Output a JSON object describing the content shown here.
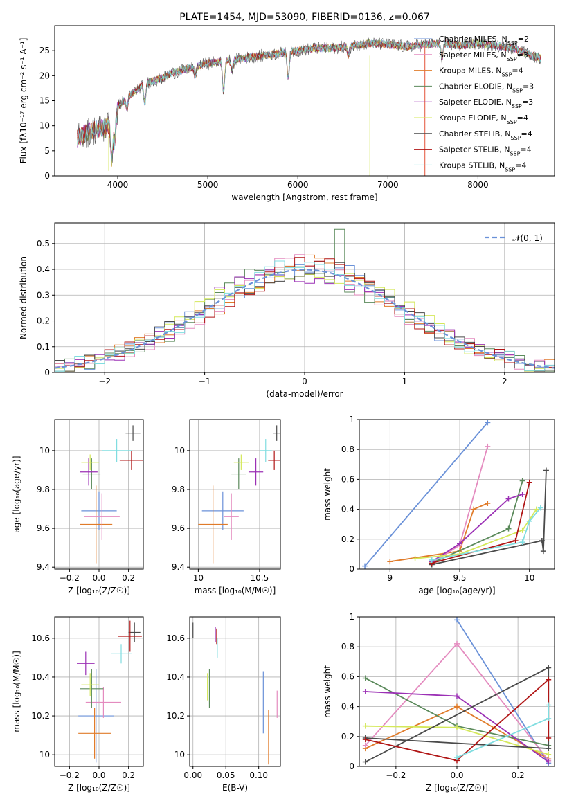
{
  "figure": {
    "title": "PLATE=1454, MJD=53090, FIBERID=0136, z=0.067"
  },
  "colors": {
    "blue": "#6a91d8",
    "orange": "#e07b2a",
    "pink": "#e48bbf",
    "green": "#5b8a5b",
    "purple": "#9b30b5",
    "lime": "#d4e85a",
    "dark": "#4a4a4a",
    "red": "#b01515",
    "cyan": "#80dde0",
    "grid": "#b0b0b0"
  },
  "chart_data": [
    {
      "id": "spectrum",
      "type": "line",
      "xlabel": "wavelength [Angstrom, rest frame]",
      "ylabel": "Flux [fλ10⁻¹⁷ erg cm⁻² s⁻¹ A⁻¹]",
      "xlim": [
        3300,
        8850
      ],
      "ylim": [
        0,
        30
      ],
      "xticks": [
        4000,
        5000,
        6000,
        7000,
        8000
      ],
      "yticks": [
        0,
        5,
        10,
        15,
        20,
        25
      ],
      "grid": false,
      "legend_position": "right",
      "continuum": {
        "x": [
          3550,
          3700,
          3850,
          3950,
          4000,
          4100,
          4200,
          4300,
          4400,
          4500,
          4600,
          4800,
          5000,
          5200,
          5400,
          5600,
          5800,
          6000,
          6200,
          6400,
          6600,
          6800,
          7000,
          7200,
          7400,
          7600,
          7800,
          8000,
          8200,
          8400,
          8600,
          8700
        ],
        "y": [
          7.5,
          9,
          9.5,
          11,
          14,
          15.5,
          17,
          18.5,
          19,
          19.5,
          20.5,
          21.5,
          22.5,
          23,
          23.5,
          24,
          24.5,
          25,
          25.5,
          25.5,
          26,
          26.5,
          26.2,
          25.8,
          26.2,
          26.5,
          26,
          26.5,
          26,
          25.5,
          24,
          23.5
        ]
      },
      "series": [
        {
          "name": "Chabrier MILES, N",
          "sub": "SSP",
          "tail": "=2",
          "color": "#6a91d8"
        },
        {
          "name": "Salpeter MILES, N",
          "sub": "SSP",
          "tail": "=3",
          "color": "#e48bbf"
        },
        {
          "name": "Kroupa MILES, N",
          "sub": "SSP",
          "tail": "=4",
          "color": "#e07b2a"
        },
        {
          "name": "Chabrier ELODIE, N",
          "sub": "SSP",
          "tail": "=3",
          "color": "#5b8a5b"
        },
        {
          "name": "Salpeter ELODIE, N",
          "sub": "SSP",
          "tail": "=3",
          "color": "#9b30b5"
        },
        {
          "name": "Kroupa ELODIE, N",
          "sub": "SSP",
          "tail": "=4",
          "color": "#d4e85a"
        },
        {
          "name": "Chabrier STELIB, N",
          "sub": "SSP",
          "tail": "=4",
          "color": "#4a4a4a"
        },
        {
          "name": "Salpeter STELIB, N",
          "sub": "SSP",
          "tail": "=4",
          "color": "#b01515"
        },
        {
          "name": "Kroupa STELIB, N",
          "sub": "SSP",
          "tail": "=4",
          "color": "#80dde0"
        }
      ]
    },
    {
      "id": "residuals",
      "type": "line",
      "xlabel": "(data-model)/error",
      "ylabel": "Normed distribution",
      "xlim": [
        -2.5,
        2.5
      ],
      "ylim": [
        0,
        0.58
      ],
      "xticks": [
        -2,
        -1,
        0,
        1,
        2
      ],
      "xtick_labels": [
        "−2",
        "−1",
        "0",
        "1",
        "2"
      ],
      "yticks": [
        0.0,
        0.1,
        0.2,
        0.3,
        0.4,
        0.5
      ],
      "grid": true,
      "legend_position": "top-right",
      "normal_curve_label": "𝒩(0, 1)",
      "bins": [
        -2.5,
        -2.4,
        -2.3,
        -2.2,
        -2.1,
        -2.0,
        -1.9,
        -1.8,
        -1.7,
        -1.6,
        -1.5,
        -1.4,
        -1.3,
        -1.2,
        -1.1,
        -1.0,
        -0.9,
        -0.8,
        -0.7,
        -0.6,
        -0.5,
        -0.4,
        -0.3,
        -0.2,
        -0.1,
        0.0,
        0.1,
        0.2,
        0.3,
        0.4,
        0.5,
        0.6,
        0.7,
        0.8,
        0.9,
        1.0,
        1.1,
        1.2,
        1.3,
        1.4,
        1.5,
        1.6,
        1.7,
        1.8,
        1.9,
        2.0,
        2.1,
        2.2,
        2.3,
        2.4,
        2.5
      ]
    },
    {
      "id": "age_vs_Z",
      "type": "scatter",
      "xlabel": "Z [log₁₀(Z/Z☉)]",
      "ylabel": "age  [log₁₀(age/yr)]",
      "xlim": [
        -0.3,
        0.3
      ],
      "ylim": [
        9.39,
        10.16
      ],
      "xticks": [
        -0.2,
        0.0,
        0.2
      ],
      "xtick_labels": [
        "−0.2",
        "0.0",
        "0.2"
      ],
      "yticks": [
        9.4,
        9.6,
        9.8,
        10.0
      ],
      "grid": true,
      "points": [
        {
          "color": "#6a91d8",
          "x": 0.0,
          "xerr": 0.12,
          "y": 9.69,
          "yerr": 0.1
        },
        {
          "color": "#e07b2a",
          "x": -0.02,
          "xerr": 0.11,
          "y": 9.62,
          "yerr": 0.2
        },
        {
          "color": "#e48bbf",
          "x": 0.02,
          "xerr": 0.12,
          "y": 9.66,
          "yerr": 0.12
        },
        {
          "color": "#5b8a5b",
          "x": -0.05,
          "xerr": 0.06,
          "y": 9.88,
          "yerr": 0.08
        },
        {
          "color": "#9b30b5",
          "x": -0.07,
          "xerr": 0.06,
          "y": 9.89,
          "yerr": 0.07
        },
        {
          "color": "#d4e85a",
          "x": -0.06,
          "xerr": 0.06,
          "y": 9.94,
          "yerr": 0.04
        },
        {
          "color": "#4a4a4a",
          "x": 0.23,
          "xerr": 0.05,
          "y": 10.09,
          "yerr": 0.04
        },
        {
          "color": "#b01515",
          "x": 0.22,
          "xerr": 0.08,
          "y": 9.95,
          "yerr": 0.05
        },
        {
          "color": "#80dde0",
          "x": 0.12,
          "xerr": 0.1,
          "y": 10.0,
          "yerr": 0.06
        }
      ]
    },
    {
      "id": "age_vs_mass",
      "type": "scatter",
      "xlabel": "mass [log₁₀(M/M☉)]",
      "ylabel": "",
      "xlim": [
        9.93,
        10.67
      ],
      "ylim": [
        9.39,
        10.16
      ],
      "xticks": [
        10.0,
        10.5
      ],
      "yticks": [
        9.4,
        9.6,
        9.8,
        10.0
      ],
      "grid": true,
      "points": [
        {
          "color": "#6a91d8",
          "x": 10.2,
          "xerr": 0.17,
          "y": 9.69,
          "yerr": 0.1
        },
        {
          "color": "#e07b2a",
          "x": 10.12,
          "xerr": 0.12,
          "y": 9.62,
          "yerr": 0.2
        },
        {
          "color": "#e48bbf",
          "x": 10.27,
          "xerr": 0.06,
          "y": 9.66,
          "yerr": 0.12
        },
        {
          "color": "#5b8a5b",
          "x": 10.33,
          "xerr": 0.06,
          "y": 9.88,
          "yerr": 0.08
        },
        {
          "color": "#9b30b5",
          "x": 10.47,
          "xerr": 0.06,
          "y": 9.89,
          "yerr": 0.07
        },
        {
          "color": "#d4e85a",
          "x": 10.35,
          "xerr": 0.06,
          "y": 9.94,
          "yerr": 0.04
        },
        {
          "color": "#4a4a4a",
          "x": 10.64,
          "xerr": 0.03,
          "y": 10.09,
          "yerr": 0.04
        },
        {
          "color": "#b01515",
          "x": 10.62,
          "xerr": 0.05,
          "y": 9.95,
          "yerr": 0.05
        },
        {
          "color": "#80dde0",
          "x": 10.55,
          "xerr": 0.05,
          "y": 10.0,
          "yerr": 0.06
        }
      ]
    },
    {
      "id": "weight_vs_age",
      "type": "line",
      "xlabel": "age  [log₁₀(age/yr)]",
      "ylabel": "mass weight",
      "xlim": [
        8.78,
        10.18
      ],
      "ylim": [
        0,
        1
      ],
      "xticks": [
        9.0,
        9.5,
        10.0
      ],
      "yticks": [
        0.0,
        0.2,
        0.4,
        0.6,
        0.8,
        1.0
      ],
      "grid": true,
      "series": [
        {
          "color": "#6a91d8",
          "x": [
            8.82,
            9.7
          ],
          "y": [
            0.02,
            0.98
          ]
        },
        {
          "color": "#e07b2a",
          "x": [
            9.0,
            9.5,
            9.6,
            9.7
          ],
          "y": [
            0.05,
            0.12,
            0.4,
            0.44
          ]
        },
        {
          "color": "#e48bbf",
          "x": [
            9.3,
            9.5,
            9.7
          ],
          "y": [
            0.04,
            0.16,
            0.82
          ]
        },
        {
          "color": "#5b8a5b",
          "x": [
            9.3,
            9.85,
            9.95
          ],
          "y": [
            0.04,
            0.27,
            0.59
          ]
        },
        {
          "color": "#9b30b5",
          "x": [
            9.3,
            9.5,
            9.85,
            9.95
          ],
          "y": [
            0.05,
            0.17,
            0.47,
            0.5
          ]
        },
        {
          "color": "#d4e85a",
          "x": [
            9.18,
            9.5,
            9.95,
            10.05
          ],
          "y": [
            0.07,
            0.1,
            0.26,
            0.4
          ]
        },
        {
          "color": "#4a4a4a",
          "x": [
            9.3,
            10.09,
            10.1,
            10.12
          ],
          "y": [
            0.03,
            0.19,
            0.12,
            0.66
          ]
        },
        {
          "color": "#b01515",
          "x": [
            9.3,
            9.9,
            10.0
          ],
          "y": [
            0.04,
            0.19,
            0.58
          ]
        },
        {
          "color": "#80dde0",
          "x": [
            9.3,
            9.95,
            10.0,
            10.08
          ],
          "y": [
            0.06,
            0.18,
            0.32,
            0.41
          ]
        }
      ]
    },
    {
      "id": "mass_vs_Z",
      "type": "scatter",
      "xlabel": "Z [log₁₀(Z/Z☉)]",
      "ylabel": "mass [log₁₀(M/M☉)]",
      "xlim": [
        -0.3,
        0.3
      ],
      "ylim": [
        9.94,
        10.71
      ],
      "xticks": [
        -0.2,
        0.0,
        0.2
      ],
      "xtick_labels": [
        "−0.2",
        "0.0",
        "0.2"
      ],
      "yticks": [
        10.0,
        10.2,
        10.4,
        10.6
      ],
      "grid": true,
      "points": [
        {
          "color": "#6a91d8",
          "x": -0.02,
          "xerr": 0.12,
          "y": 10.2,
          "yerr": 0.24
        },
        {
          "color": "#e07b2a",
          "x": -0.03,
          "xerr": 0.11,
          "y": 10.11,
          "yerr": 0.13
        },
        {
          "color": "#e48bbf",
          "x": 0.03,
          "xerr": 0.12,
          "y": 10.27,
          "yerr": 0.08
        },
        {
          "color": "#5b8a5b",
          "x": -0.05,
          "xerr": 0.08,
          "y": 10.34,
          "yerr": 0.1
        },
        {
          "color": "#9b30b5",
          "x": -0.09,
          "xerr": 0.06,
          "y": 10.47,
          "yerr": 0.06
        },
        {
          "color": "#d4e85a",
          "x": -0.06,
          "xerr": 0.06,
          "y": 10.36,
          "yerr": 0.06
        },
        {
          "color": "#4a4a4a",
          "x": 0.24,
          "xerr": 0.04,
          "y": 10.63,
          "yerr": 0.05
        },
        {
          "color": "#b01515",
          "x": 0.21,
          "xerr": 0.08,
          "y": 10.61,
          "yerr": 0.08
        },
        {
          "color": "#80dde0",
          "x": 0.15,
          "xerr": 0.07,
          "y": 10.52,
          "yerr": 0.05
        }
      ]
    },
    {
      "id": "mass_vs_EBV",
      "type": "scatter",
      "xlabel": "E(B-V)",
      "ylabel": "",
      "xlim": [
        -0.005,
        0.133
      ],
      "ylim": [
        9.94,
        10.71
      ],
      "xticks": [
        0.0,
        0.05,
        0.1
      ],
      "xtick_labels": [
        "0.00",
        "0.05",
        "0.10"
      ],
      "yticks": [
        10.0,
        10.2,
        10.4,
        10.6
      ],
      "grid": true,
      "points": [
        {
          "color": "#6a91d8",
          "x": 0.107,
          "y": 10.27,
          "yerr": 0.16
        },
        {
          "color": "#e07b2a",
          "x": 0.115,
          "y": 10.09,
          "yerr": 0.14
        },
        {
          "color": "#e48bbf",
          "x": 0.128,
          "y": 10.26,
          "yerr": 0.07
        },
        {
          "color": "#5b8a5b",
          "x": 0.025,
          "y": 10.34,
          "yerr": 0.1
        },
        {
          "color": "#9b30b5",
          "x": 0.034,
          "y": 10.62,
          "yerr": 0.04
        },
        {
          "color": "#d4e85a",
          "x": 0.022,
          "y": 10.35,
          "yerr": 0.07
        },
        {
          "color": "#4a4a4a",
          "x": 0.0,
          "y": 10.64,
          "yerr": 0.04
        },
        {
          "color": "#b01515",
          "x": 0.036,
          "y": 10.61,
          "yerr": 0.04
        },
        {
          "color": "#80dde0",
          "x": 0.037,
          "y": 10.55,
          "yerr": 0.05
        }
      ]
    },
    {
      "id": "weight_vs_Z",
      "type": "line",
      "xlabel": "Z [log₁₀(Z/Z☉)]",
      "ylabel": "mass weight",
      "xlim": [
        -0.32,
        0.32
      ],
      "ylim": [
        0,
        1
      ],
      "xticks": [
        -0.2,
        0.0,
        0.2
      ],
      "xtick_labels": [
        "−0.2",
        "0.0",
        "0.2"
      ],
      "yticks": [
        0.0,
        0.2,
        0.4,
        0.6,
        0.8,
        1.0
      ],
      "grid": true,
      "series": [
        {
          "color": "#6a91d8",
          "x": [
            0.0,
            0.3
          ],
          "y": [
            0.98,
            0.02
          ]
        },
        {
          "color": "#e07b2a",
          "x": [
            -0.3,
            0.0,
            0.3
          ],
          "y": [
            0.12,
            0.4,
            0.05
          ]
        },
        {
          "color": "#e48bbf",
          "x": [
            -0.3,
            0.0,
            0.3
          ],
          "y": [
            0.14,
            0.82,
            0.04
          ]
        },
        {
          "color": "#5b8a5b",
          "x": [
            -0.3,
            0.0,
            0.3
          ],
          "y": [
            0.59,
            0.27,
            0.14
          ]
        },
        {
          "color": "#9b30b5",
          "x": [
            -0.3,
            0.0,
            0.3
          ],
          "y": [
            0.5,
            0.47,
            0.03
          ]
        },
        {
          "color": "#d4e85a",
          "x": [
            -0.3,
            0.0,
            0.3
          ],
          "y": [
            0.27,
            0.26,
            0.08
          ]
        },
        {
          "color": "#4a4a4a",
          "x": [
            -0.3,
            0.3,
            0.3,
            -0.3
          ],
          "y": [
            0.03,
            0.66,
            0.12,
            0.19
          ]
        },
        {
          "color": "#b01515",
          "x": [
            -0.3,
            0.0,
            0.3,
            0.3
          ],
          "y": [
            0.18,
            0.04,
            0.58,
            0.19
          ]
        },
        {
          "color": "#80dde0",
          "x": [
            0.0,
            0.3,
            0.3
          ],
          "y": [
            0.06,
            0.32,
            0.41
          ]
        }
      ]
    }
  ]
}
